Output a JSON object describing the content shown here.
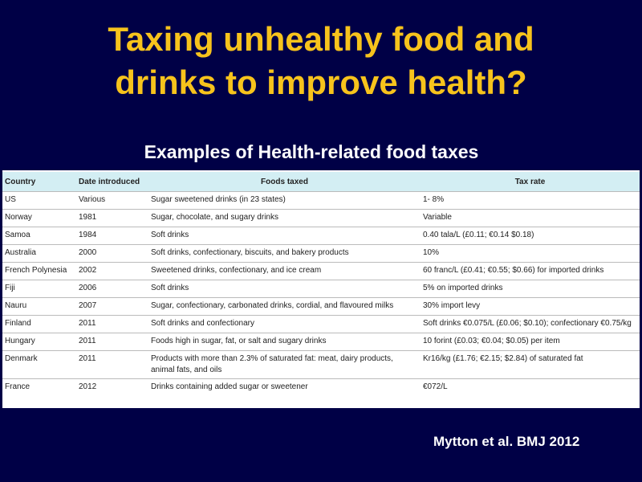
{
  "slide": {
    "title_lines": [
      "Taxing unhealthy food and",
      "drinks to improve health?"
    ],
    "subtitle": "Examples of Health-related food taxes",
    "table": {
      "header": [
        "Country",
        "Date introduced",
        "Foods taxed",
        "Tax rate"
      ],
      "rows": [
        [
          "US",
          "Various",
          "Sugar sweetened drinks (in 23 states)",
          "1- 8%"
        ],
        [
          "Norway",
          "1981",
          "Sugar, chocolate, and sugary drinks",
          "Variable"
        ],
        [
          "Samoa",
          "1984",
          "Soft drinks",
          "0.40 tala/L (£0.11; €0.14 $0.18)"
        ],
        [
          "Australia",
          "2000",
          "Soft drinks, confectionary, biscuits, and bakery products",
          "10%"
        ],
        [
          "French Polynesia",
          "2002",
          "Sweetened drinks, confectionary, and ice cream",
          "60 franc/L (£0.41; €0.55; $0.66) for imported drinks"
        ],
        [
          "Fiji",
          "2006",
          "Soft drinks",
          "5% on imported drinks"
        ],
        [
          "Nauru",
          "2007",
          "Sugar, confectionary, carbonated drinks, cordial, and flavoured milks",
          "30% import levy"
        ],
        [
          "Finland",
          "2011",
          "Soft drinks and confectionary",
          "Soft drinks €0.075/L (£0.06; $0.10); confectionary €0.75/kg"
        ],
        [
          "Hungary",
          "2011",
          "Foods high in sugar, fat, or salt and sugary drinks",
          "10 forint (£0.03; €0.04; $0.05) per item"
        ],
        [
          "Denmark",
          "2011",
          "Products with more than 2.3% of saturated fat: meat, dairy products, animal fats, and oils",
          "Kr16/kg (£1.76; €2.15; $2.84) of saturated fat"
        ],
        [
          "France",
          "2012",
          "Drinks containing added sugar or sweetener",
          "€072/L"
        ]
      ]
    },
    "citation": "Mytton et al. BMJ 2012"
  }
}
